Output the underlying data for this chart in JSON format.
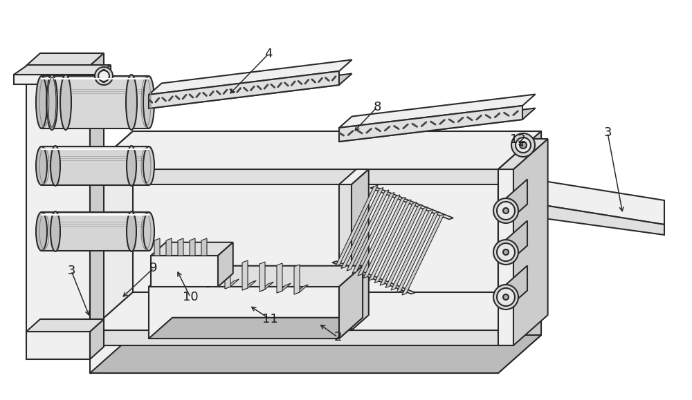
{
  "bg_color": "#ffffff",
  "line_color": "#2a2a2a",
  "label_color": "#1a1a1a",
  "fig_width": 10.0,
  "fig_height": 5.79,
  "dpi": 100
}
